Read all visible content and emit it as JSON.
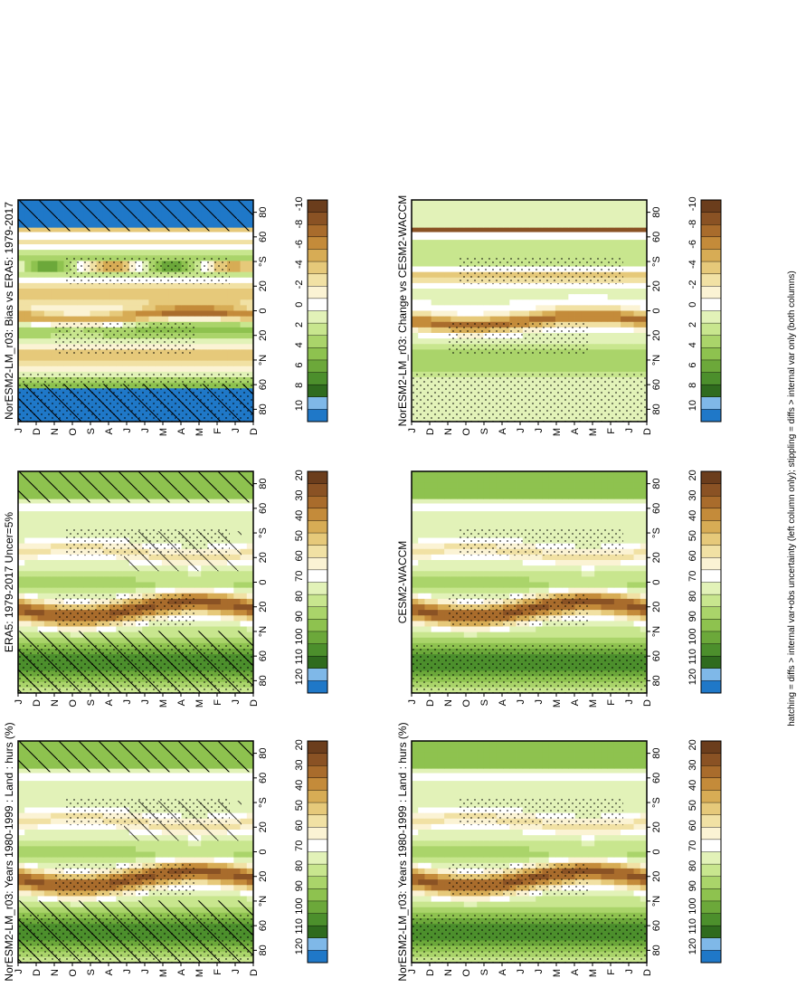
{
  "footnote": "hatching = diffs > internal var+obs uncertainty (left column only); stippling = diffs > internal var only (both columns)",
  "palettes": {
    "abs": [
      "#1f78c8",
      "#7fb8e8",
      "#2f6b1e",
      "#4c8f2c",
      "#6ca83a",
      "#8ec24f",
      "#aad46a",
      "#c8e68e",
      "#e2f2b8",
      "#ffffff",
      "#fbf3d4",
      "#f1e1a4",
      "#e6c97a",
      "#d7ac55",
      "#c48b3a",
      "#a96c2c",
      "#8a5224",
      "#6b3d1c"
    ],
    "diff": [
      "#1f78c8",
      "#7fb8e8",
      "#2f6b1e",
      "#4c8f2c",
      "#6ca83a",
      "#8ec24f",
      "#aad46a",
      "#c8e68e",
      "#e2f2b8",
      "#ffffff",
      "#fbf3d4",
      "#f1e1a4",
      "#e6c97a",
      "#d7ac55",
      "#c48b3a",
      "#a96c2c",
      "#8a5224",
      "#6b3d1c"
    ]
  },
  "colorbars": {
    "abs": [
      "120",
      "110",
      "100",
      "90",
      "80",
      "70",
      "60",
      "50",
      "40",
      "30",
      "20"
    ],
    "diff": [
      "10",
      "8",
      "6",
      "4",
      "2",
      "0",
      "-2",
      "-4",
      "-6",
      "-8",
      "-10"
    ]
  },
  "axes": {
    "months": [
      "D",
      "J",
      "F",
      "M",
      "A",
      "M",
      "J",
      "J",
      "A",
      "S",
      "O",
      "N",
      "D",
      "J"
    ],
    "lat_labels": [
      "80",
      "60",
      "°N",
      "20",
      "0",
      "20",
      "°S",
      "60",
      "80"
    ]
  },
  "chart_data": [
    {
      "type": "heatmap",
      "id": "p1",
      "title": "NorESM2-LM_r03: Years 1980-1999 : Land : hurs (%)",
      "colorbar": "abs",
      "hatch": "full",
      "stipple": "dense",
      "x": [
        "D",
        "J",
        "F",
        "M",
        "A",
        "M",
        "J",
        "J",
        "A",
        "S",
        "O",
        "N",
        "D",
        "J"
      ],
      "ylim": [
        -90,
        90
      ],
      "zlim": [
        20,
        120
      ]
    },
    {
      "type": "heatmap",
      "id": "p2",
      "title": "NorESM2-LM_r03: Years 1980-1999 : Land : hurs (%)",
      "colorbar": "abs",
      "hatch": "none",
      "stipple": "dense",
      "x": [
        "D",
        "J",
        "F",
        "M",
        "A",
        "M",
        "J",
        "J",
        "A",
        "S",
        "O",
        "N",
        "D",
        "J"
      ],
      "ylim": [
        -90,
        90
      ],
      "zlim": [
        20,
        120
      ]
    },
    {
      "type": "heatmap",
      "id": "p3",
      "title": "ERA5: 1979-2017 Uncer=5%",
      "colorbar": "abs",
      "hatch": "full",
      "stipple": "dense",
      "x": [
        "D",
        "J",
        "F",
        "M",
        "A",
        "M",
        "J",
        "J",
        "A",
        "S",
        "O",
        "N",
        "D",
        "J"
      ],
      "ylim": [
        -90,
        90
      ],
      "zlim": [
        20,
        120
      ]
    },
    {
      "type": "heatmap",
      "id": "p4",
      "title": "CESM2-WACCM",
      "colorbar": "abs",
      "hatch": "none",
      "stipple": "dense",
      "x": [
        "D",
        "J",
        "F",
        "M",
        "A",
        "M",
        "J",
        "J",
        "A",
        "S",
        "O",
        "N",
        "D",
        "J"
      ],
      "ylim": [
        -90,
        90
      ],
      "zlim": [
        20,
        120
      ]
    },
    {
      "type": "heatmap",
      "id": "p5",
      "title": "NorESM2-LM_r03: Bias vs ERA5: 1979-2017",
      "colorbar": "diff",
      "hatch": "polar",
      "stipple": "dense",
      "x": [
        "D",
        "J",
        "F",
        "M",
        "A",
        "M",
        "J",
        "J",
        "A",
        "S",
        "O",
        "N",
        "D",
        "J"
      ],
      "ylim": [
        -90,
        90
      ],
      "zlim": [
        -10,
        10
      ]
    },
    {
      "type": "heatmap",
      "id": "p6",
      "title": "NorESM2-LM_r03: Change vs CESM2-WACCM",
      "colorbar": "diff",
      "hatch": "none",
      "stipple": "dense",
      "x": [
        "D",
        "J",
        "F",
        "M",
        "A",
        "M",
        "J",
        "J",
        "A",
        "S",
        "O",
        "N",
        "D",
        "J"
      ],
      "ylim": [
        -90,
        90
      ],
      "zlim": [
        -10,
        10
      ]
    }
  ]
}
